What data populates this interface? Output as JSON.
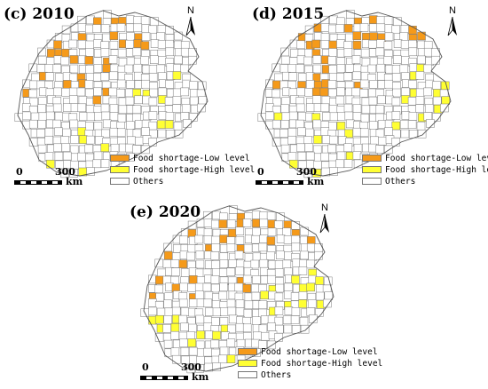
{
  "colors": {
    "low": "#f59a1a",
    "high": "#ffff33",
    "others": "#ffffff",
    "border": "#7a7a7a"
  },
  "legend": {
    "low_label": "Food shortage-Low level",
    "high_label": "Food shortage-High level",
    "others_label": "Others"
  },
  "scale": {
    "start": "0",
    "end": "300",
    "unit": "km"
  },
  "north_label": "N",
  "panels": [
    {
      "id": "c",
      "title": "(c) 2010",
      "low_count": 14,
      "high_count": 9
    },
    {
      "id": "d",
      "title": "(d) 2015",
      "low_count": 16,
      "high_count": 14
    },
    {
      "id": "e",
      "title": "(e) 2020",
      "low_count": 13,
      "high_count": 16
    }
  ],
  "icons": [
    "north-arrow-icon"
  ]
}
